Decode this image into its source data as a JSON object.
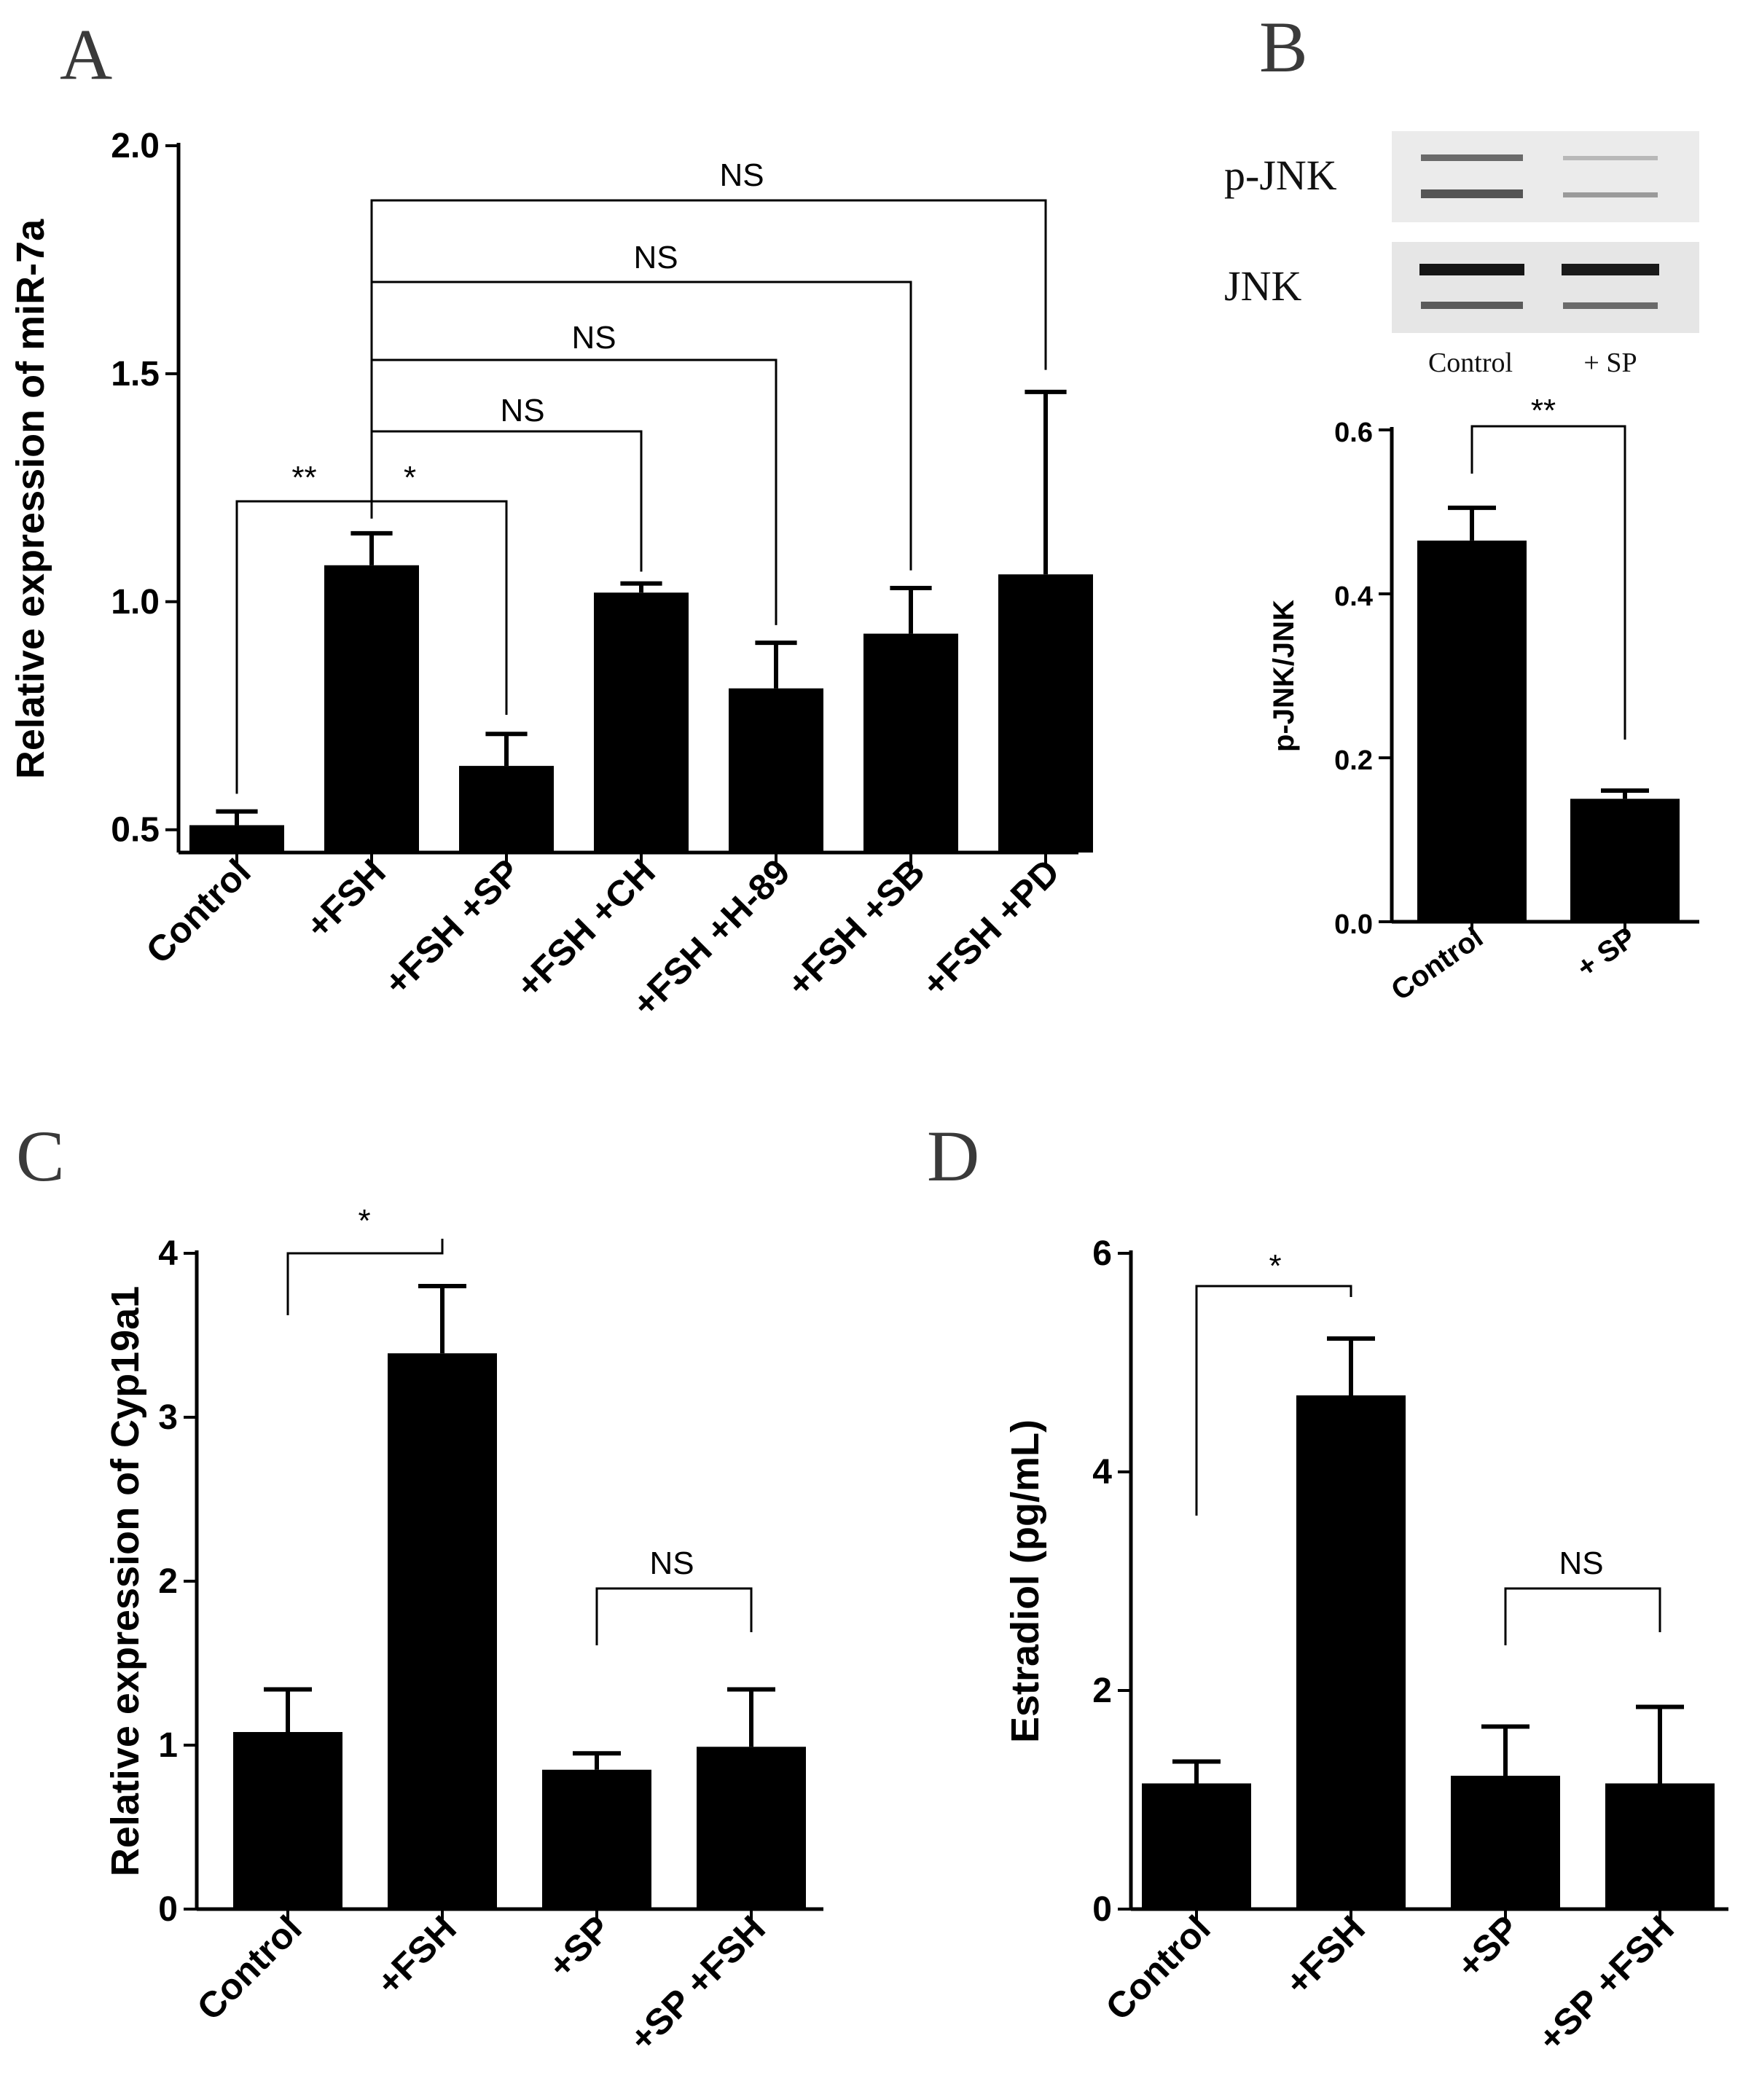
{
  "panels": {
    "A": "A",
    "B": "B",
    "C": "C",
    "D": "D"
  },
  "blot": {
    "rows": [
      "p-JNK",
      "JNK"
    ],
    "lanes": [
      "Control",
      "+ SP"
    ]
  },
  "chart_data": [
    {
      "id": "A",
      "type": "bar",
      "title": "",
      "xlabel": "",
      "ylabel": "Relative expression of miR-7a",
      "categories": [
        "Control",
        "+FSH",
        "+FSH +SP",
        "+FSH +CH",
        "+FSH +H-89",
        "+FSH +SB",
        "+FSH +PD"
      ],
      "values": [
        0.51,
        1.08,
        0.64,
        1.02,
        0.81,
        0.93,
        1.06
      ],
      "errors": [
        0.03,
        0.07,
        0.07,
        0.02,
        0.1,
        0.1,
        0.4
      ],
      "ylim": [
        0.45,
        2.0
      ],
      "yticks": [
        0.5,
        1.0,
        1.5,
        2.0
      ],
      "ytick_labels": [
        "0.5",
        "1.0",
        "1.5",
        "2.0"
      ],
      "significance": [
        {
          "from": 0,
          "to": 1,
          "label": "**"
        },
        {
          "from": 1,
          "to": 2,
          "label": "*"
        },
        {
          "from": 1,
          "to": 3,
          "label": "NS"
        },
        {
          "from": 1,
          "to": 4,
          "label": "NS"
        },
        {
          "from": 1,
          "to": 5,
          "label": "NS"
        },
        {
          "from": 1,
          "to": 6,
          "label": "NS"
        }
      ]
    },
    {
      "id": "B",
      "type": "bar",
      "title": "",
      "xlabel": "",
      "ylabel": "p-JNK/JNK",
      "categories": [
        "Control",
        "+ SP"
      ],
      "values": [
        0.465,
        0.15
      ],
      "errors": [
        0.04,
        0.01
      ],
      "ylim": [
        0,
        0.6
      ],
      "yticks": [
        0,
        0.2,
        0.4,
        0.6
      ],
      "ytick_labels": [
        "0.0",
        "0.2",
        "0.4",
        "0.6"
      ],
      "significance": [
        {
          "from": 0,
          "to": 1,
          "label": "**"
        }
      ]
    },
    {
      "id": "C",
      "type": "bar",
      "title": "",
      "xlabel": "",
      "ylabel": "Relative expression of Cyp19a1",
      "categories": [
        "Control",
        "+FSH",
        "+SP",
        "+SP +FSH"
      ],
      "values": [
        1.08,
        3.39,
        0.85,
        0.99
      ],
      "errors": [
        0.26,
        0.41,
        0.1,
        0.35
      ],
      "ylim": [
        0,
        4
      ],
      "yticks": [
        0,
        1,
        2,
        3,
        4
      ],
      "ytick_labels": [
        "0",
        "1",
        "2",
        "3",
        "4"
      ],
      "significance": [
        {
          "from": 0,
          "to": 1,
          "label": "*"
        },
        {
          "from": 2,
          "to": 3,
          "label": "NS"
        }
      ]
    },
    {
      "id": "D",
      "type": "bar",
      "title": "",
      "xlabel": "",
      "ylabel": "Estradiol (pg/mL)",
      "categories": [
        "Control",
        "+FSH",
        "+SP",
        "+SP +FSH"
      ],
      "values": [
        1.15,
        4.7,
        1.22,
        1.15
      ],
      "errors": [
        0.2,
        0.52,
        0.45,
        0.7
      ],
      "ylim": [
        0,
        6
      ],
      "yticks": [
        0,
        2,
        4,
        6
      ],
      "ytick_labels": [
        "0",
        "2",
        "4",
        "6"
      ],
      "significance": [
        {
          "from": 0,
          "to": 1,
          "label": "*"
        },
        {
          "from": 2,
          "to": 3,
          "label": "NS"
        }
      ]
    }
  ]
}
